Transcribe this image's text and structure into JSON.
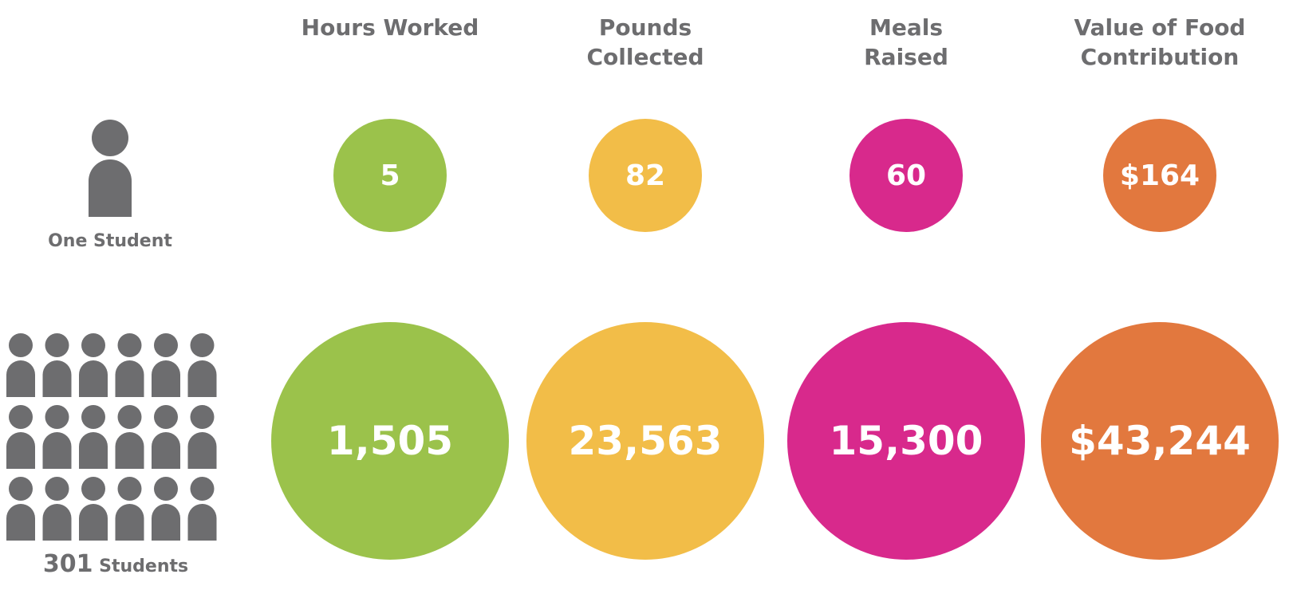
{
  "columns": [
    {
      "title": "Hours Worked"
    },
    {
      "title": "Pounds Collected"
    },
    {
      "title": "Meals Raised"
    },
    {
      "title": "Value of Food Contribution"
    }
  ],
  "rows": [
    {
      "label": "One Student",
      "values": [
        "5",
        "82",
        "60",
        "$164"
      ]
    },
    {
      "count": "301",
      "label": "Students",
      "values": [
        "1,505",
        "23,563",
        "15,300",
        "$43,244"
      ]
    }
  ]
}
